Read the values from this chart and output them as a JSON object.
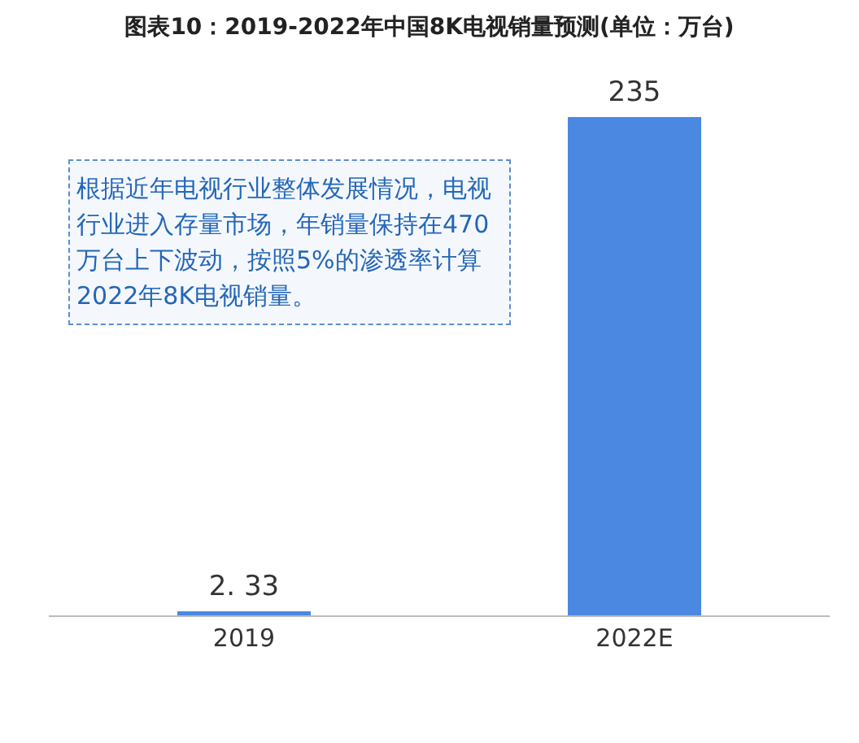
{
  "chart_data": {
    "type": "bar",
    "title": "图表10：2019-2022年中国8K电视销量预测(单位：万台)",
    "categories": [
      "2019",
      "2022E"
    ],
    "values": [
      2.33,
      235
    ],
    "value_labels": [
      "2. 33",
      "235"
    ],
    "color": "#4a88e2",
    "annotations": [
      "根据近年电视行业整体发展情况，电视行业进入存量市场，年销量保持在470万台上下波动，按照5%的渗透率计算2022年8K电视销量。"
    ]
  }
}
